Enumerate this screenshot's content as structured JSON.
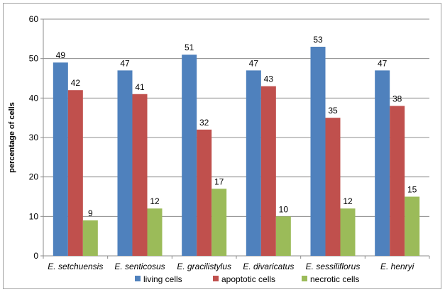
{
  "chart_data": {
    "type": "bar",
    "title": "",
    "xlabel": "",
    "ylabel": "percentage of cells",
    "ylim": [
      0,
      60
    ],
    "yticks": [
      0,
      10,
      20,
      30,
      40,
      50,
      60
    ],
    "grid": true,
    "legend_position": "bottom",
    "categories": [
      "E. setchuensis",
      "E. senticosus",
      "E. gracilistylus",
      "E. divaricatus",
      "E. sessiliflorus",
      "E. henryi"
    ],
    "series": [
      {
        "name": "living cells",
        "color": "#4f81bd",
        "values": [
          49,
          47,
          51,
          47,
          53,
          47
        ]
      },
      {
        "name": "apoptotic cells",
        "color": "#c0504d",
        "values": [
          42,
          41,
          32,
          43,
          35,
          38
        ]
      },
      {
        "name": "necrotic cells",
        "color": "#9bbb59",
        "values": [
          9,
          12,
          17,
          10,
          12,
          15
        ]
      }
    ]
  }
}
